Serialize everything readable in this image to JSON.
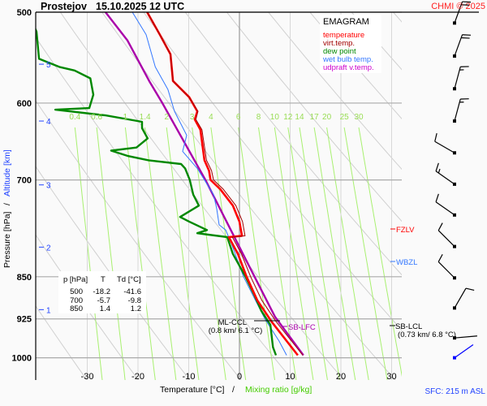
{
  "header": {
    "station": "Prostejov",
    "datetime": "15.10.2025 12 UTC",
    "copyright": "CHMI © 2025"
  },
  "legend": {
    "title": "EMAGRAM",
    "items": [
      {
        "label": "temperature",
        "color": "#ff0000"
      },
      {
        "label": "virt.temp.",
        "color": "#a00000"
      },
      {
        "label": "dew point",
        "color": "#008800"
      },
      {
        "label": "wet bulb temp.",
        "color": "#3377ff"
      },
      {
        "label": "udpraft v.temp.",
        "color": "#aa00aa"
      }
    ]
  },
  "table": {
    "headers": [
      "p [hPa]",
      "T",
      "Td [°C]"
    ],
    "rows": [
      [
        "500",
        "-18.2",
        "-41.6"
      ],
      [
        "700",
        "-5.7",
        "-9.8"
      ],
      [
        "850",
        "1.4",
        "1.2"
      ]
    ]
  },
  "annotations": {
    "fzlv": "FZLV",
    "wbzl": "WBZL",
    "sb_lcl": "SB-LCL",
    "sb_lcl_detail": "(0.73 km/ 6.8 °C)",
    "ml_ccl": "ML-CCL",
    "ml_ccl_detail": "(0.8 km/ 6.1 °C)",
    "sb_lfc": "SB-LFC",
    "sfc": "SFC: 215 m ASL"
  },
  "chart_data": {
    "type": "line",
    "title": "EMAGRAM",
    "xlabel": "Temperature [°C]",
    "xlabel_secondary": "Mixing ratio [g/kg]",
    "ylabel": "Pressure [hPa]",
    "ylabel_secondary": "Altitude [km]",
    "xlim": [
      -38.4,
      32
    ],
    "ylim": [
      1045,
      500
    ],
    "yscale": "log",
    "x_ticks": [
      "-30",
      "-20",
      "-10",
      "0",
      "10",
      "20",
      "30"
    ],
    "x_tick_values": [
      -30,
      -20,
      -10,
      0,
      10,
      20,
      30
    ],
    "y_ticks": [
      "500",
      "600",
      "700",
      "850",
      "925",
      "1000"
    ],
    "y_tick_values": [
      500,
      600,
      700,
      850,
      925,
      1000
    ],
    "altitude_ticks": [
      {
        "label": "5",
        "p": 555
      },
      {
        "label": "4",
        "p": 622
      },
      {
        "label": "3",
        "p": 707
      },
      {
        "label": "2",
        "p": 801
      },
      {
        "label": "1",
        "p": 908
      }
    ],
    "mixing_ratio_labels": [
      "0.4",
      "0.6",
      "1",
      "1.4",
      "2",
      "3",
      "4",
      "6",
      "8",
      "10",
      "12",
      "14",
      "17",
      "20",
      "25",
      "30"
    ],
    "mixing_ratio_values": [
      0.4,
      0.6,
      1,
      1.4,
      2,
      3,
      4,
      6,
      8,
      10,
      12,
      14,
      17,
      20,
      25,
      30
    ],
    "grid": true,
    "legend_position": "top-right",
    "series": [
      {
        "name": "temperature",
        "color": "#ff0000",
        "points": [
          [
            500,
            -18.2
          ],
          [
            523,
            -15.7
          ],
          [
            544,
            -13.6
          ],
          [
            562,
            -13.3
          ],
          [
            574,
            -13.1
          ],
          [
            593,
            -9.9
          ],
          [
            610,
            -8.3
          ],
          [
            620,
            -8.8
          ],
          [
            633,
            -7.7
          ],
          [
            673,
            -6.9
          ],
          [
            687,
            -6.0
          ],
          [
            700,
            -5.7
          ],
          [
            713,
            -3.8
          ],
          [
            737,
            -1.3
          ],
          [
            761,
            0.0
          ],
          [
            783,
            0.5
          ],
          [
            785,
            -2.1
          ],
          [
            812,
            -0.3
          ],
          [
            850,
            1.4
          ],
          [
            891,
            3.5
          ],
          [
            931,
            6.4
          ],
          [
            995,
            11.5
          ]
        ]
      },
      {
        "name": "virt.temp.",
        "color": "#a00000",
        "points": [
          [
            500,
            -18.2
          ],
          [
            523,
            -15.7
          ],
          [
            544,
            -13.6
          ],
          [
            562,
            -13.3
          ],
          [
            574,
            -13.1
          ],
          [
            593,
            -9.9
          ],
          [
            610,
            -8.2
          ],
          [
            620,
            -8.6
          ],
          [
            633,
            -7.4
          ],
          [
            673,
            -6.5
          ],
          [
            687,
            -5.5
          ],
          [
            700,
            -5.1
          ],
          [
            713,
            -3.2
          ],
          [
            737,
            -0.7
          ],
          [
            761,
            0.6
          ],
          [
            783,
            1.1
          ],
          [
            785,
            -1.4
          ],
          [
            812,
            0.4
          ],
          [
            850,
            2.2
          ],
          [
            891,
            4.4
          ],
          [
            931,
            7.3
          ],
          [
            995,
            12.5
          ]
        ]
      },
      {
        "name": "dew point",
        "color": "#008800",
        "points": [
          [
            500,
            -41.6
          ],
          [
            520,
            -40.0
          ],
          [
            549,
            -39.5
          ],
          [
            558,
            -35.5
          ],
          [
            562,
            -32.5
          ],
          [
            571,
            -29.4
          ],
          [
            590,
            -28.8
          ],
          [
            606,
            -29.6
          ],
          [
            608,
            -36.3
          ],
          [
            615,
            -26.4
          ],
          [
            623,
            -19.2
          ],
          [
            631,
            -19.2
          ],
          [
            644,
            -18.1
          ],
          [
            656,
            -20.3
          ],
          [
            660,
            -25.3
          ],
          [
            667,
            -22.1
          ],
          [
            673,
            -17.9
          ],
          [
            678,
            -11.5
          ],
          [
            684,
            -10.7
          ],
          [
            700,
            -9.8
          ],
          [
            721,
            -9.1
          ],
          [
            737,
            -8.0
          ],
          [
            754,
            -11.7
          ],
          [
            761,
            -9.9
          ],
          [
            774,
            -6.4
          ],
          [
            779,
            -8.3
          ],
          [
            785,
            -2.4
          ],
          [
            812,
            -1.3
          ],
          [
            850,
            1.2
          ],
          [
            881,
            2.9
          ],
          [
            910,
            4.3
          ],
          [
            936,
            6.1
          ],
          [
            979,
            6.6
          ],
          [
            995,
            7.2
          ]
        ]
      },
      {
        "name": "wet bulb temp.",
        "color": "#3377ff",
        "points": [
          [
            500,
            -21.1
          ],
          [
            523,
            -18.4
          ],
          [
            558,
            -16.6
          ],
          [
            584,
            -14.1
          ],
          [
            600,
            -13.3
          ],
          [
            610,
            -12.8
          ],
          [
            640,
            -10.4
          ],
          [
            661,
            -11.2
          ],
          [
            684,
            -8.3
          ],
          [
            721,
            -5.1
          ],
          [
            741,
            -4.5
          ],
          [
            766,
            -4.0
          ],
          [
            774,
            -2.7
          ],
          [
            795,
            -1.6
          ],
          [
            850,
            0.8
          ],
          [
            925,
            5.0
          ],
          [
            967,
            7.8
          ],
          [
            995,
            9.3
          ]
        ]
      },
      {
        "name": "udpraft v.temp.",
        "color": "#aa00aa",
        "points": [
          [
            500,
            -26.4
          ],
          [
            529,
            -22.1
          ],
          [
            574,
            -17.8
          ],
          [
            600,
            -15.2
          ],
          [
            700,
            -6.7
          ],
          [
            822,
            1.3
          ],
          [
            921,
            7.0
          ],
          [
            995,
            12.6
          ]
        ]
      }
    ],
    "wind_barbs": [
      {
        "p": 511,
        "dir_deg": 20,
        "speed_kt": 20
      },
      {
        "p": 546,
        "dir_deg": 20,
        "speed_kt": 20
      },
      {
        "p": 583,
        "dir_deg": 15,
        "speed_kt": 15
      },
      {
        "p": 622,
        "dir_deg": 15,
        "speed_kt": 15
      },
      {
        "p": 663,
        "dir_deg": 300,
        "speed_kt": 10
      },
      {
        "p": 706,
        "dir_deg": 305,
        "speed_kt": 15
      },
      {
        "p": 751,
        "dir_deg": 305,
        "speed_kt": 10
      },
      {
        "p": 800,
        "dir_deg": 315,
        "speed_kt": 10
      },
      {
        "p": 852,
        "dir_deg": 315,
        "speed_kt": 10
      },
      {
        "p": 905,
        "dir_deg": 30,
        "speed_kt": 10
      },
      {
        "p": 961,
        "dir_deg": 85,
        "speed_kt": 0
      },
      {
        "p": 1000,
        "dir_deg": 55,
        "speed_kt": 0,
        "color": "#0000ff"
      }
    ]
  }
}
